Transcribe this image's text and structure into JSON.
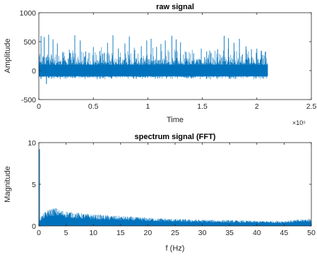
{
  "figure": {
    "background": "#ffffff",
    "series_color": "#0072BD",
    "axis_color": "#262626"
  },
  "chart_data": [
    {
      "type": "line",
      "title": "raw signal",
      "xlabel": "Time",
      "ylabel": "Amplitude",
      "x_exponent_label": "×10⁵",
      "xlim": [
        0,
        2.5
      ],
      "ylim": [
        -500,
        1000
      ],
      "xticks": [
        0,
        0.5,
        1,
        1.5,
        2,
        2.5
      ],
      "xtick_labels": [
        "0",
        "0.5",
        "1",
        "1.5",
        "2",
        "2.5"
      ],
      "yticks": [
        -500,
        0,
        500,
        1000
      ],
      "ytick_labels": [
        "-500",
        "0",
        "500",
        "1000"
      ],
      "grid": false,
      "signal": {
        "x_range": [
          0,
          2.1
        ],
        "band": [
          -100,
          100
        ],
        "min": -230,
        "peaks": [
          [
            0.02,
            600
          ],
          [
            0.05,
            580
          ],
          [
            0.09,
            620
          ],
          [
            0.13,
            540
          ],
          [
            0.17,
            470
          ],
          [
            0.22,
            310
          ],
          [
            0.28,
            360
          ],
          [
            0.33,
            610
          ],
          [
            0.38,
            520
          ],
          [
            0.43,
            330
          ],
          [
            0.5,
            410
          ],
          [
            0.56,
            340
          ],
          [
            0.63,
            480
          ],
          [
            0.68,
            610
          ],
          [
            0.73,
            380
          ],
          [
            0.79,
            470
          ],
          [
            0.83,
            590
          ],
          [
            0.88,
            360
          ],
          [
            0.94,
            420
          ],
          [
            0.99,
            520
          ],
          [
            1.03,
            550
          ],
          [
            1.08,
            410
          ],
          [
            1.12,
            460
          ],
          [
            1.16,
            520
          ],
          [
            1.22,
            600
          ],
          [
            1.26,
            540
          ],
          [
            1.3,
            490
          ],
          [
            1.35,
            320
          ],
          [
            1.42,
            300
          ],
          [
            1.49,
            380
          ],
          [
            1.54,
            330
          ],
          [
            1.58,
            300
          ],
          [
            1.64,
            370
          ],
          [
            1.7,
            600
          ],
          [
            1.74,
            560
          ],
          [
            1.79,
            480
          ],
          [
            1.84,
            550
          ],
          [
            1.9,
            420
          ],
          [
            1.95,
            370
          ],
          [
            2.0,
            380
          ],
          [
            2.04,
            340
          ],
          [
            2.08,
            330
          ]
        ]
      }
    },
    {
      "type": "line",
      "title": "spectrum signal (FFT)",
      "xlabel": "f (Hz)",
      "ylabel": "Magnitude",
      "xlim": [
        0,
        50
      ],
      "ylim": [
        0,
        10
      ],
      "xticks": [
        0,
        5,
        10,
        15,
        20,
        25,
        30,
        35,
        40,
        45,
        50
      ],
      "xtick_labels": [
        "0",
        "5",
        "10",
        "15",
        "20",
        "25",
        "30",
        "35",
        "40",
        "45",
        "50"
      ],
      "yticks": [
        0,
        5,
        10
      ],
      "ytick_labels": [
        "0",
        "5",
        "10"
      ],
      "grid": false,
      "spectrum": {
        "spike_at_zero": 9.2,
        "envelope": [
          [
            0.2,
            1.0
          ],
          [
            1,
            1.6
          ],
          [
            2,
            2.1
          ],
          [
            3,
            2.2
          ],
          [
            4,
            1.9
          ],
          [
            5,
            1.8
          ],
          [
            7,
            1.6
          ],
          [
            10,
            1.4
          ],
          [
            15,
            1.2
          ],
          [
            20,
            1.0
          ],
          [
            25,
            0.85
          ],
          [
            30,
            0.75
          ],
          [
            35,
            0.7
          ],
          [
            40,
            0.62
          ],
          [
            45,
            0.62
          ],
          [
            50,
            0.9
          ]
        ]
      }
    }
  ]
}
